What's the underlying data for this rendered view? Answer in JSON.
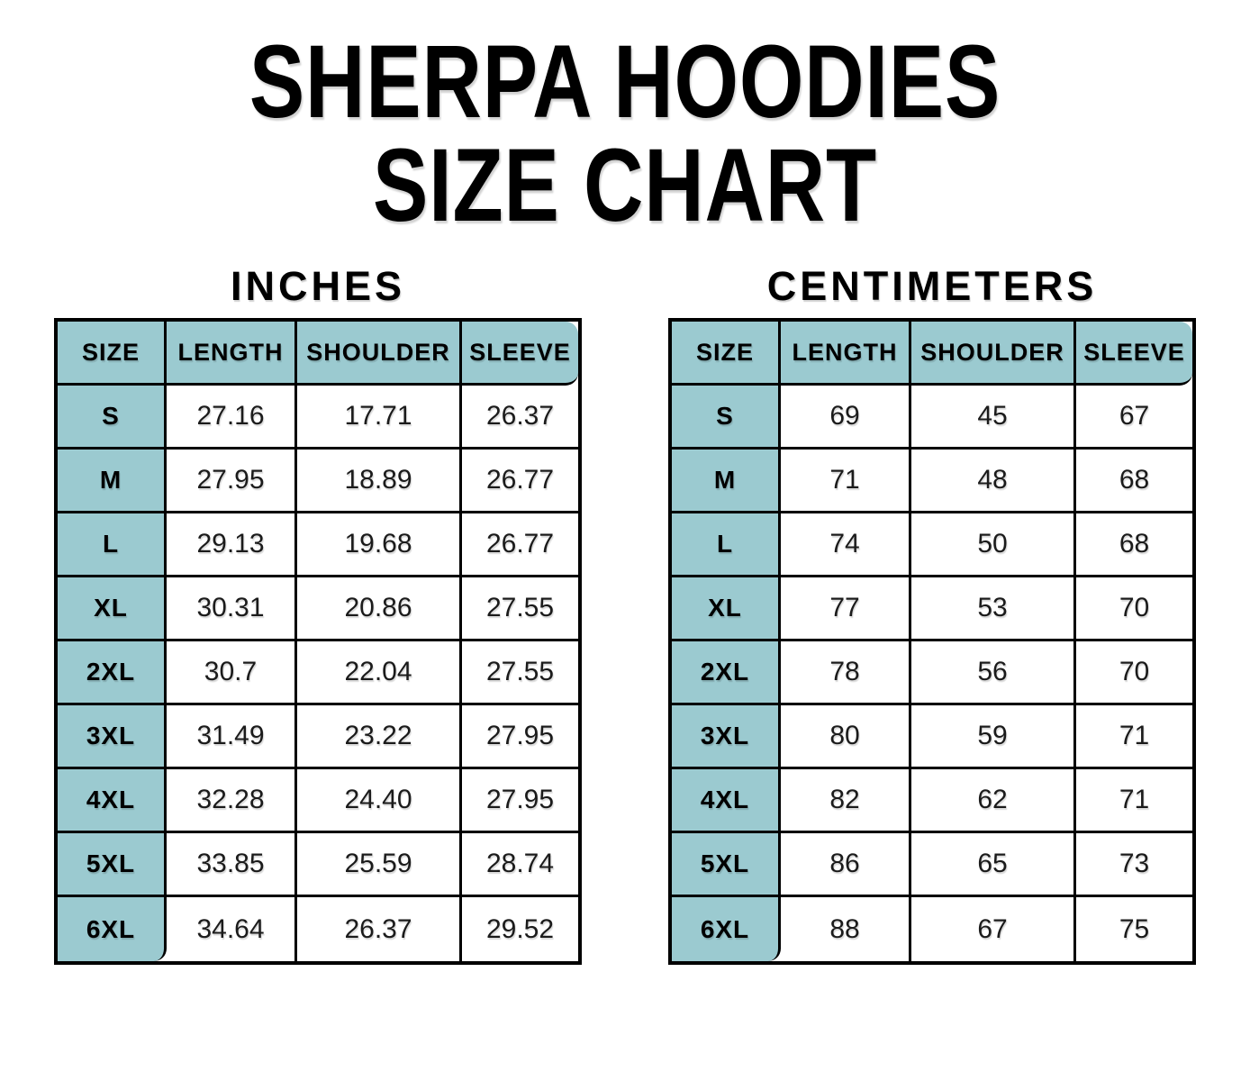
{
  "title": {
    "line1": "SHERPA HOODIES",
    "line2": "SIZE CHART"
  },
  "colors": {
    "table_fill": "#9bcad0",
    "border": "#000000",
    "background": "#ffffff",
    "value_text": "#1b1b1b"
  },
  "tables": [
    {
      "heading": "INCHES",
      "columns": [
        "SIZE",
        "LENGTH",
        "SHOULDER",
        "SLEEVE"
      ],
      "rows": [
        [
          "S",
          "27.16",
          "17.71",
          "26.37"
        ],
        [
          "M",
          "27.95",
          "18.89",
          "26.77"
        ],
        [
          "L",
          "29.13",
          "19.68",
          "26.77"
        ],
        [
          "XL",
          "30.31",
          "20.86",
          "27.55"
        ],
        [
          "2XL",
          "30.7",
          "22.04",
          "27.55"
        ],
        [
          "3XL",
          "31.49",
          "23.22",
          "27.95"
        ],
        [
          "4XL",
          "32.28",
          "24.40",
          "27.95"
        ],
        [
          "5XL",
          "33.85",
          "25.59",
          "28.74"
        ],
        [
          "6XL",
          "34.64",
          "26.37",
          "29.52"
        ]
      ]
    },
    {
      "heading": "CENTIMETERS",
      "columns": [
        "SIZE",
        "LENGTH",
        "SHOULDER",
        "SLEEVE"
      ],
      "rows": [
        [
          "S",
          "69",
          "45",
          "67"
        ],
        [
          "M",
          "71",
          "48",
          "68"
        ],
        [
          "L",
          "74",
          "50",
          "68"
        ],
        [
          "XL",
          "77",
          "53",
          "70"
        ],
        [
          "2XL",
          "78",
          "56",
          "70"
        ],
        [
          "3XL",
          "80",
          "59",
          "71"
        ],
        [
          "4XL",
          "82",
          "62",
          "71"
        ],
        [
          "5XL",
          "86",
          "65",
          "73"
        ],
        [
          "6XL",
          "88",
          "67",
          "75"
        ]
      ]
    }
  ],
  "chart_data": [
    {
      "type": "table",
      "title": "INCHES",
      "columns": [
        "SIZE",
        "LENGTH",
        "SHOULDER",
        "SLEEVE"
      ],
      "rows": [
        [
          "S",
          27.16,
          17.71,
          26.37
        ],
        [
          "M",
          27.95,
          18.89,
          26.77
        ],
        [
          "L",
          29.13,
          19.68,
          26.77
        ],
        [
          "XL",
          30.31,
          20.86,
          27.55
        ],
        [
          "2XL",
          30.7,
          22.04,
          27.55
        ],
        [
          "3XL",
          31.49,
          23.22,
          27.95
        ],
        [
          "4XL",
          32.28,
          24.4,
          27.95
        ],
        [
          "5XL",
          33.85,
          25.59,
          28.74
        ],
        [
          "6XL",
          34.64,
          26.37,
          29.52
        ]
      ]
    },
    {
      "type": "table",
      "title": "CENTIMETERS",
      "columns": [
        "SIZE",
        "LENGTH",
        "SHOULDER",
        "SLEEVE"
      ],
      "rows": [
        [
          "S",
          69,
          45,
          67
        ],
        [
          "M",
          71,
          48,
          68
        ],
        [
          "L",
          74,
          50,
          68
        ],
        [
          "XL",
          77,
          53,
          70
        ],
        [
          "2XL",
          78,
          56,
          70
        ],
        [
          "3XL",
          80,
          59,
          71
        ],
        [
          "4XL",
          82,
          62,
          71
        ],
        [
          "5XL",
          86,
          65,
          73
        ],
        [
          "6XL",
          88,
          67,
          75
        ]
      ]
    }
  ]
}
